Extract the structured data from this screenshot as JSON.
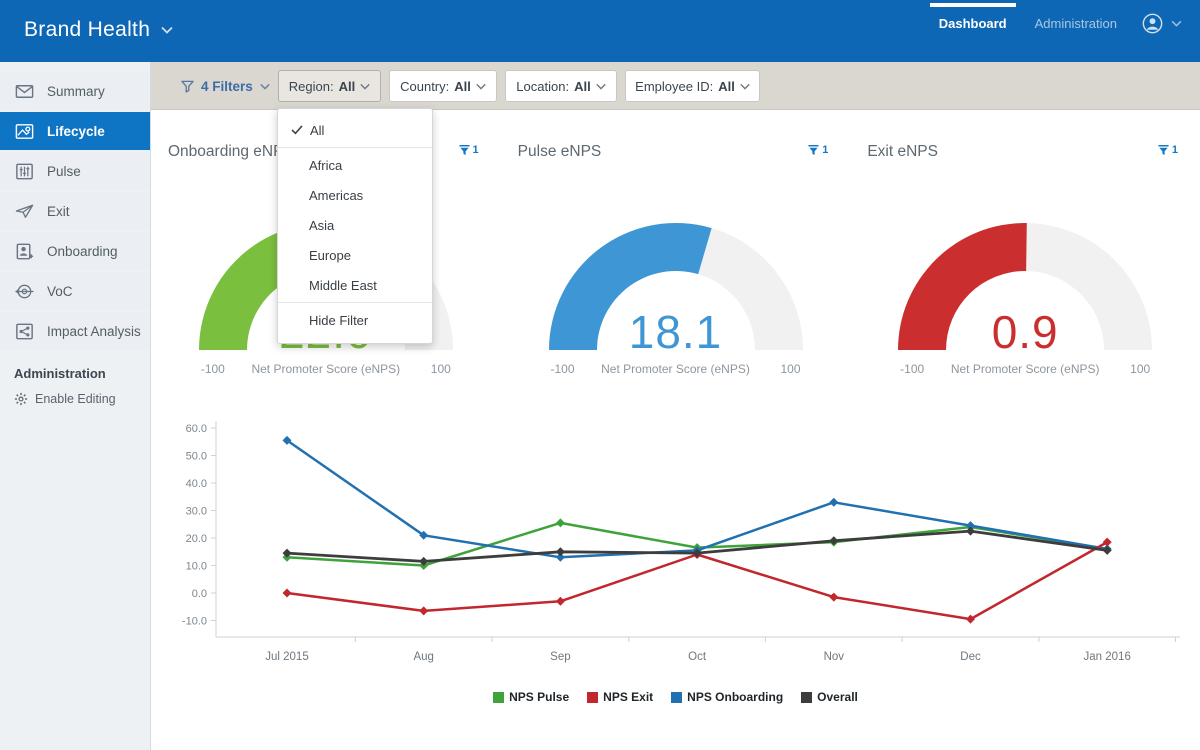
{
  "header": {
    "brand": "Brand Health",
    "nav": [
      {
        "label": "Dashboard",
        "active": true
      },
      {
        "label": "Administration",
        "active": false
      }
    ]
  },
  "sidebar": {
    "items": [
      {
        "label": "Summary"
      },
      {
        "label": "Lifecycle",
        "active": true
      },
      {
        "label": "Pulse"
      },
      {
        "label": "Exit"
      },
      {
        "label": "Onboarding"
      },
      {
        "label": "VoC"
      },
      {
        "label": "Impact Analysis"
      }
    ],
    "admin_heading": "Administration",
    "admin_action": "Enable Editing"
  },
  "filter_bar": {
    "summary": "4 Filters",
    "filters": [
      {
        "label": "Region:",
        "value": "All",
        "open": true
      },
      {
        "label": "Country:",
        "value": "All"
      },
      {
        "label": "Location:",
        "value": "All"
      },
      {
        "label": "Employee ID:",
        "value": "All"
      }
    ]
  },
  "region_dropdown": {
    "selected": "All",
    "options": [
      "All",
      "Africa",
      "Americas",
      "Asia",
      "Europe",
      "Middle East"
    ],
    "footer_action": "Hide Filter"
  },
  "chart_data": [
    {
      "type": "gauge",
      "title": "Onboarding eNPS",
      "value": 22.0,
      "value_display": "22.0",
      "min": -100,
      "max": 100,
      "center_label": "Net Promoter Score (eNPS)",
      "color": "#7bbf3e",
      "track_color": "#f1f1f1",
      "filter_badge_count": 1
    },
    {
      "type": "gauge",
      "title": "Pulse eNPS",
      "value": 18.1,
      "value_display": "18.1",
      "min": -100,
      "max": 100,
      "center_label": "Net Promoter Score (eNPS)",
      "color": "#3e97d4",
      "track_color": "#f1f1f1",
      "filter_badge_count": 1
    },
    {
      "type": "gauge",
      "title": "Exit eNPS",
      "value": 0.9,
      "value_display": "0.9",
      "min": -100,
      "max": 100,
      "center_label": "Net Promoter Score (eNPS)",
      "color": "#cb2e2e",
      "track_color": "#f1f1f1",
      "filter_badge_count": 1
    },
    {
      "type": "line",
      "x": [
        "Jul 2015",
        "Aug",
        "Sep",
        "Oct",
        "Nov",
        "Dec",
        "Jan 2016"
      ],
      "series": [
        {
          "name": "NPS Pulse",
          "color": "#3fa33c",
          "values": [
            13,
            10,
            25.5,
            16.5,
            18.5,
            24,
            16
          ]
        },
        {
          "name": "NPS Exit",
          "color": "#c1272d",
          "values": [
            0,
            -6.5,
            -3,
            14,
            -1.5,
            -9.5,
            18.5
          ]
        },
        {
          "name": "NPS Onboarding",
          "color": "#2170b0",
          "values": [
            55.5,
            21,
            13,
            15.5,
            33,
            24.5,
            16
          ]
        },
        {
          "name": "Overall",
          "color": "#3d3d3d",
          "values": [
            14.5,
            11.5,
            15,
            14.5,
            19,
            22.5,
            15.5
          ]
        }
      ],
      "ylim": [
        -10,
        60
      ],
      "yticks": [
        60,
        50,
        40,
        30,
        20,
        10,
        0,
        -10
      ],
      "grid": false,
      "legend_position": "bottom"
    }
  ]
}
